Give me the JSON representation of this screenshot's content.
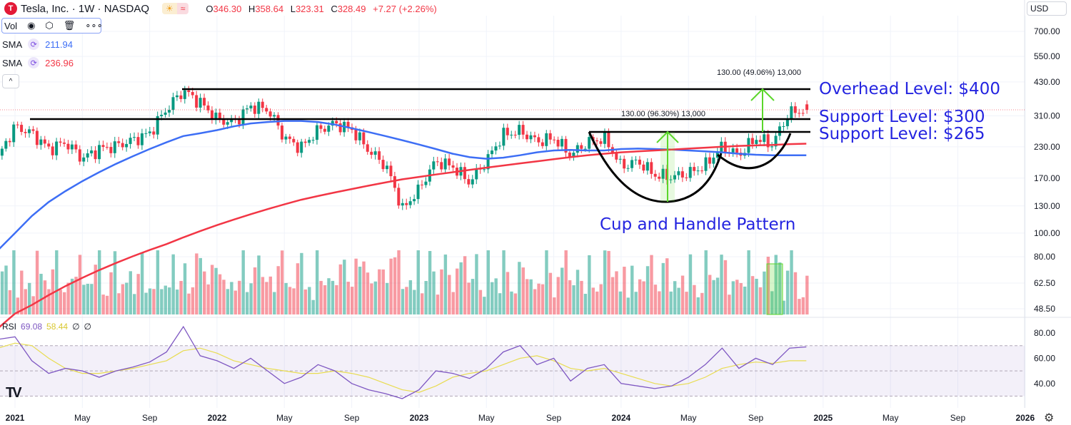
{
  "header": {
    "title": "Tesla, Inc. · 1W · NASDAQ",
    "logo_letter": "T",
    "session_icons": [
      "☀",
      "≈"
    ],
    "ohlc": {
      "o_label": "O",
      "o": "346.30",
      "h_label": "H",
      "h": "358.64",
      "l_label": "L",
      "l": "323.31",
      "c_label": "C",
      "c": "328.49",
      "change": "+7.27 (+2.26%)"
    }
  },
  "legend": {
    "vol_label": "Vol",
    "sma1": {
      "label": "SMA",
      "value": "211.94",
      "color": "#3d6ef5"
    },
    "sma2": {
      "label": "SMA",
      "value": "236.96",
      "color": "#f23645"
    },
    "collapse_icon": "^"
  },
  "currency": "USD",
  "rsi_legend": {
    "label": "RSI",
    "value": "69.08",
    "ma_value": "58.44",
    "na1": "∅",
    "na2": "∅"
  },
  "annotations": {
    "overhead": "Overhead Level: $400",
    "support300": "Support Level: $300",
    "support265": "Support Level: $265",
    "pattern": "Cup and Handle Pattern",
    "measure1": "130.00 (96.30%) 13,000",
    "measure2": "130.00 (49.06%) 13,000"
  },
  "colors": {
    "up": "#089981",
    "down": "#f23645",
    "sma50": "#3d6ef5",
    "sma200": "#f23645",
    "rsi": "#7e57c2",
    "rsi_ma": "#e8dc50",
    "annotation": "#2424e0",
    "arrow": "#5bd62a"
  },
  "chart_data": {
    "type": "candlestick",
    "title": "Tesla, Inc. · 1W · NASDAQ",
    "scale": "log",
    "price_ticks": [
      "700.00",
      "550.00",
      "430.00",
      "310.00",
      "230.00",
      "170.00",
      "130.00",
      "100.00"
    ],
    "price_tick_values": [
      700,
      550,
      430,
      310,
      230,
      170,
      130,
      100
    ],
    "volume_ticks": [
      "80.00",
      "62.50",
      "48.50"
    ],
    "rsi_ticks": [
      "80.00",
      "60.00",
      "40.00"
    ],
    "rsi_tick_values": [
      80,
      60,
      40
    ],
    "rsi_bands": [
      70,
      50,
      30
    ],
    "x_ticks": [
      "2021",
      "May",
      "Sep",
      "2022",
      "May",
      "Sep",
      "2023",
      "May",
      "Sep",
      "2024",
      "May",
      "Sep",
      "2025",
      "May",
      "Sep",
      "2026"
    ],
    "x_tick_months": [
      1,
      5,
      9,
      13,
      17,
      21,
      25,
      29,
      33,
      37,
      41,
      45,
      49,
      53,
      57,
      61
    ],
    "monthly_close_start": "2020-12",
    "monthly_close": [
      205,
      280,
      262,
      225,
      240,
      205,
      225,
      232,
      245,
      262,
      330,
      395,
      352,
      300,
      290,
      340,
      330,
      250,
      228,
      270,
      288,
      272,
      222,
      192,
      125,
      152,
      200,
      190,
      163,
      200,
      258,
      268,
      242,
      250,
      212,
      240,
      250,
      190,
      200,
      175,
      172,
      178,
      192,
      230,
      212,
      250,
      235,
      320,
      328
    ],
    "sma50_monthly": [
      85,
      100,
      118,
      135,
      150,
      165,
      180,
      195,
      210,
      225,
      240,
      255,
      262,
      270,
      280,
      288,
      292,
      295,
      295,
      292,
      285,
      275,
      265,
      255,
      245,
      235,
      225,
      215,
      208,
      205,
      207,
      212,
      218,
      222,
      223,
      222,
      222,
      225,
      226,
      225,
      224,
      222,
      220,
      218,
      215,
      213,
      212,
      212,
      212
    ],
    "sma200_monthly": [
      40,
      46,
      50,
      55,
      60,
      65,
      70,
      75,
      80,
      85,
      90,
      96,
      102,
      108,
      114,
      120,
      126,
      132,
      138,
      143,
      148,
      153,
      158,
      163,
      168,
      172,
      176,
      180,
      184,
      188,
      192,
      196,
      200,
      204,
      208,
      212,
      215,
      218,
      220,
      222,
      224,
      226,
      228,
      230,
      232,
      233,
      234,
      236,
      237
    ],
    "rsi_monthly": [
      75,
      77,
      58,
      48,
      52,
      50,
      45,
      50,
      53,
      57,
      65,
      85,
      62,
      58,
      52,
      60,
      50,
      40,
      45,
      55,
      50,
      40,
      35,
      32,
      28,
      35,
      50,
      48,
      44,
      52,
      65,
      70,
      55,
      60,
      42,
      52,
      55,
      40,
      38,
      36,
      38,
      45,
      55,
      68,
      52,
      60,
      55,
      68,
      69
    ],
    "rsi_ma_monthly": [
      68,
      72,
      70,
      60,
      52,
      48,
      48,
      50,
      52,
      55,
      58,
      66,
      68,
      64,
      58,
      55,
      52,
      50,
      48,
      48,
      50,
      48,
      45,
      40,
      35,
      33,
      38,
      45,
      48,
      50,
      55,
      60,
      62,
      58,
      52,
      50,
      52,
      48,
      44,
      40,
      38,
      40,
      45,
      52,
      55,
      57,
      56,
      58,
      58
    ],
    "levels": [
      400,
      300,
      265
    ],
    "current_price": 328.49
  }
}
